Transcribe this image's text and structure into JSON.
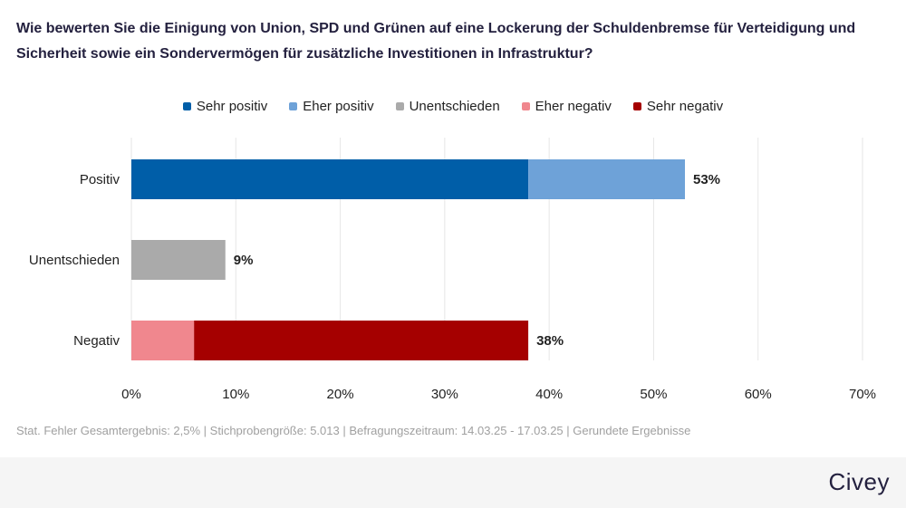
{
  "title": "Wie bewerten Sie die Einigung von Union, SPD und Grünen auf eine Lockerung der Schuldenbremse für Verteidigung und Sicherheit sowie ein Sondervermögen für zusätzliche Investitionen in Infrastruktur?",
  "footnote": "Stat. Fehler Gesamtergebnis: 2,5% | Stichprobengröße: 5.013 | Befragungszeitraum: 14.03.25 - 17.03.25 | Gerundete Ergebnisse",
  "brand": "Civey",
  "chart_data": {
    "type": "bar",
    "orientation": "horizontal",
    "stacked": true,
    "categories": [
      "Positiv",
      "Unentschieden",
      "Negativ"
    ],
    "series": [
      {
        "name": "Sehr positiv",
        "color": "#005ea8",
        "values": [
          38,
          0,
          0
        ]
      },
      {
        "name": "Eher positiv",
        "color": "#6ea2d8",
        "values": [
          15,
          0,
          0
        ]
      },
      {
        "name": "Unentschieden",
        "color": "#aaaaaa",
        "values": [
          0,
          9,
          0
        ]
      },
      {
        "name": "Eher negativ",
        "color": "#f0878e",
        "values": [
          0,
          0,
          6
        ]
      },
      {
        "name": "Sehr negativ",
        "color": "#a50000",
        "values": [
          0,
          0,
          32
        ]
      }
    ],
    "totals": [
      "53%",
      "9%",
      "38%"
    ],
    "xlim": [
      0,
      70
    ],
    "xticks": [
      "0%",
      "10%",
      "20%",
      "30%",
      "40%",
      "50%",
      "60%",
      "70%"
    ],
    "grid": "vertical",
    "legend": "top-center"
  }
}
